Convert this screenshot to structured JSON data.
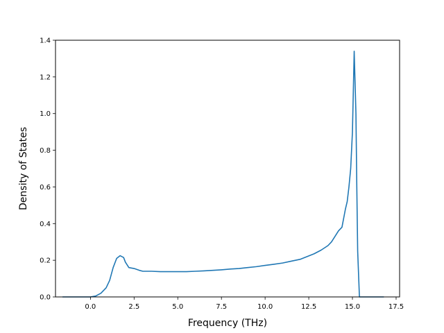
{
  "chart_data": {
    "type": "line",
    "title": "",
    "xlabel": "Frequency (THz)",
    "ylabel": "Density of States",
    "xlim": [
      -2.0,
      17.7
    ],
    "ylim": [
      0.0,
      1.4
    ],
    "grid": false,
    "x_ticks": [
      {
        "value": 0.0,
        "label": "0.0"
      },
      {
        "value": 2.5,
        "label": "2.5"
      },
      {
        "value": 5.0,
        "label": "5.0"
      },
      {
        "value": 7.5,
        "label": "7.5"
      },
      {
        "value": 10.0,
        "label": "10.0"
      },
      {
        "value": 12.5,
        "label": "12.5"
      },
      {
        "value": 15.0,
        "label": "15.0"
      },
      {
        "value": 17.5,
        "label": "17.5"
      }
    ],
    "y_ticks": [
      {
        "value": 0.0,
        "label": "0.0"
      },
      {
        "value": 0.2,
        "label": "0.2"
      },
      {
        "value": 0.4,
        "label": "0.4"
      },
      {
        "value": 0.6,
        "label": "0.6"
      },
      {
        "value": 0.8,
        "label": "0.8"
      },
      {
        "value": 1.0,
        "label": "1.0"
      },
      {
        "value": 1.2,
        "label": "1.2"
      },
      {
        "value": 1.4,
        "label": "1.4"
      }
    ],
    "series": [
      {
        "color": "#1f77b4",
        "x": [
          -1.6,
          -0.5,
          0.0,
          0.3,
          0.6,
          0.9,
          1.1,
          1.3,
          1.5,
          1.7,
          1.9,
          2.0,
          2.2,
          2.5,
          2.8,
          3.0,
          3.5,
          4.0,
          4.5,
          5.0,
          5.5,
          6.0,
          6.5,
          7.0,
          7.5,
          8.0,
          8.5,
          9.0,
          9.5,
          10.0,
          10.5,
          11.0,
          11.5,
          12.0,
          12.4,
          12.8,
          13.2,
          13.6,
          13.8,
          14.0,
          14.2,
          14.4,
          14.5,
          14.6,
          14.7,
          14.8,
          14.9,
          15.0,
          15.1,
          15.2,
          15.25,
          15.3,
          15.4,
          15.5,
          16.8
        ],
        "y": [
          0.0,
          0.0,
          0.0,
          0.005,
          0.02,
          0.05,
          0.09,
          0.16,
          0.21,
          0.225,
          0.215,
          0.19,
          0.16,
          0.155,
          0.145,
          0.14,
          0.14,
          0.138,
          0.138,
          0.138,
          0.138,
          0.14,
          0.142,
          0.145,
          0.148,
          0.152,
          0.155,
          0.16,
          0.165,
          0.172,
          0.178,
          0.185,
          0.195,
          0.205,
          0.22,
          0.235,
          0.255,
          0.28,
          0.3,
          0.33,
          0.36,
          0.38,
          0.43,
          0.48,
          0.52,
          0.6,
          0.7,
          0.9,
          1.34,
          1.0,
          0.6,
          0.25,
          0.0,
          0.0,
          0.0
        ]
      }
    ]
  }
}
